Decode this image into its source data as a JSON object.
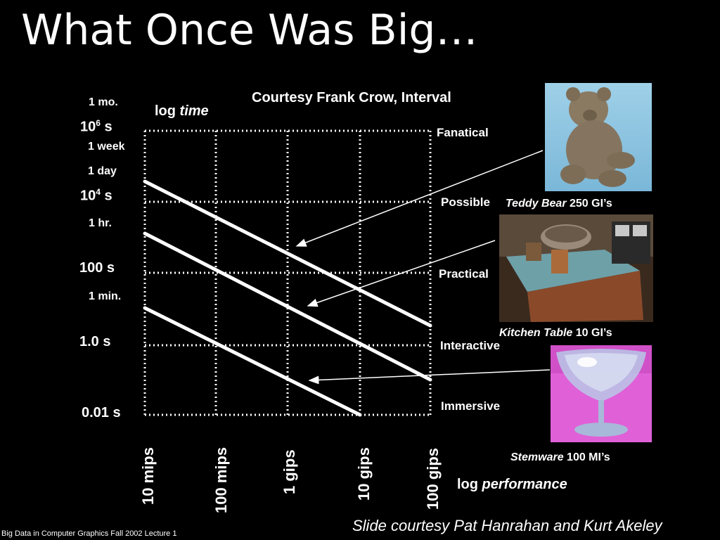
{
  "slide": {
    "title": "What Once Was Big…",
    "courtesy": "Courtesy Frank Crow, Interval",
    "footer_left": "Big Data in Computer Graphics Fall 2002 Lecture 1",
    "footer_right": "Slide courtesy Pat Hanrahan and Kurt Akeley"
  },
  "chart_data": {
    "type": "line",
    "ylabel_prefix": "log ",
    "ylabel_italic": "time",
    "xlabel_prefix": "log ",
    "xlabel_italic": "performance",
    "x_ticks": [
      "10 mips",
      "100 mips",
      "1 gips",
      "10 gips",
      "100 gips"
    ],
    "y_ticks_major": [
      "0.01 s",
      "1.0 s",
      "100 s",
      "10^4 s",
      "10^6 s"
    ],
    "y_ticks_major_display": {
      "t0": "0.01 s",
      "t1": "1.0 s",
      "t2": "100 s",
      "t3_base": "10",
      "t3_exp": "4",
      "t3_unit": " s",
      "t4_base": "10",
      "t4_exp": "6",
      "t4_unit": " s"
    },
    "y_ticks_minor": [
      "1 min.",
      "1 hr.",
      "1 day",
      "1 week",
      "1 mo."
    ],
    "levels": [
      "Immersive",
      "Interactive",
      "Practical",
      "Possible",
      "Fanatical"
    ],
    "series": [
      {
        "name": "Teddy Bear",
        "x": [
          "10 mips",
          "100 gips"
        ],
        "y": [
          "10^4 s",
          "1.0 s"
        ]
      },
      {
        "name": "Kitchen Table",
        "x": [
          "10 mips",
          "100 gips"
        ],
        "y": [
          "~300 s",
          "~0.05 s"
        ]
      },
      {
        "name": "Stemware",
        "x": [
          "10 mips",
          "10 gips"
        ],
        "y": [
          "~20 s",
          "0.01 s"
        ]
      }
    ],
    "grid": true
  },
  "scenes": [
    {
      "name_italic": "Teddy Bear",
      "amount": " 250 GI’s"
    },
    {
      "name_italic": "Kitchen Table",
      "amount": " 10 GI’s"
    },
    {
      "name_italic": "Stemware",
      "amount": " 100 MI’s"
    }
  ],
  "colors": {
    "background": "#000000",
    "text": "#ffffff",
    "grid": "#ffffff"
  }
}
